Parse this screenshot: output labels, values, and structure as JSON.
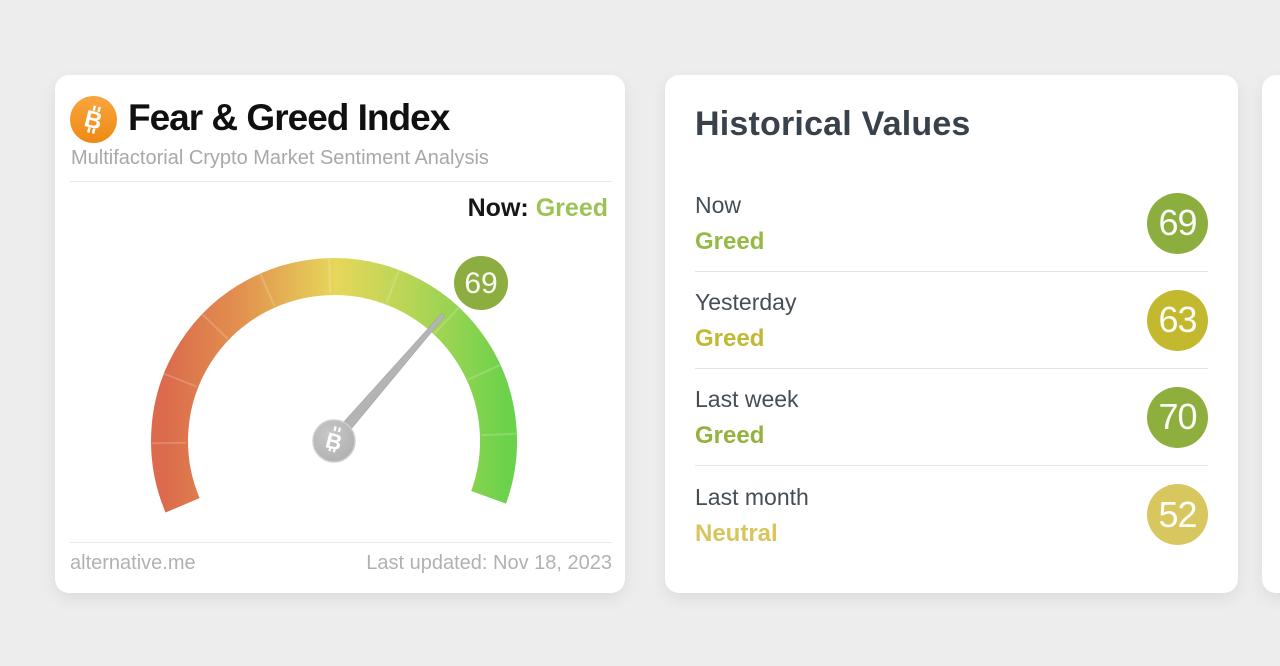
{
  "page": {
    "background": "#ededed"
  },
  "fear_greed_card": {
    "title": "Fear & Greed Index",
    "subtitle": "Multifactorial Crypto Market Sentiment Analysis",
    "now_label": "Now:",
    "now_classification": "Greed",
    "now_classification_color": "#9cc356",
    "footer_source": "alternative.me",
    "footer_updated": "Last updated: Nov 18, 2023",
    "gauge": {
      "value": 69,
      "min": 0,
      "max": 100,
      "badge_color": "#8cad3f",
      "badge_text_color": "#fbfbf5",
      "needle_color": "#b4b4b4",
      "bitcoin_orange": "#f7931a"
    }
  },
  "historical_card": {
    "title": "Historical Values",
    "rows": [
      {
        "period": "Now",
        "classification": "Greed",
        "value": 69,
        "badge_color": "#8cae3f",
        "text_color": "#94ba44"
      },
      {
        "period": "Yesterday",
        "classification": "Greed",
        "value": 63,
        "badge_color": "#c3b92e",
        "text_color": "#c2b832"
      },
      {
        "period": "Last week",
        "classification": "Greed",
        "value": 70,
        "badge_color": "#8eae3d",
        "text_color": "#94b23d"
      },
      {
        "period": "Last month",
        "classification": "Neutral",
        "value": 52,
        "badge_color": "#d8c65e",
        "text_color": "#d8c65d"
      }
    ]
  },
  "chart_data": {
    "type": "gauge",
    "title": "Fear & Greed Index",
    "value": 69,
    "classification": "Greed",
    "range": [
      0,
      100
    ],
    "scale_colors": [
      "#db6b4c",
      "#e2934f",
      "#e6d75a",
      "#b6d556",
      "#6bd24b"
    ],
    "historical": [
      {
        "label": "Now",
        "value": 69,
        "classification": "Greed"
      },
      {
        "label": "Yesterday",
        "value": 63,
        "classification": "Greed"
      },
      {
        "label": "Last week",
        "value": 70,
        "classification": "Greed"
      },
      {
        "label": "Last month",
        "value": 52,
        "classification": "Neutral"
      }
    ]
  }
}
